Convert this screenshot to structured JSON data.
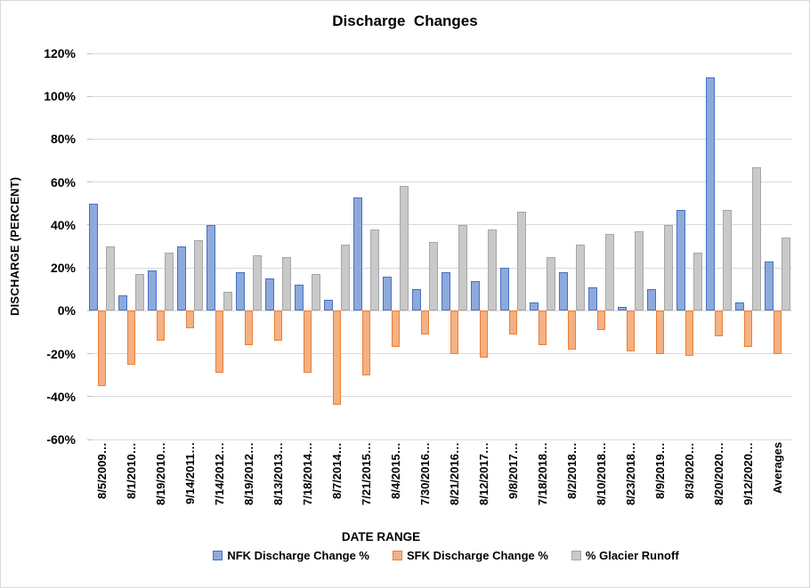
{
  "title": "Discharge  Changes",
  "axes": {
    "y_title": "DISCHARGE (PERCENT)",
    "x_title": "DATE RANGE",
    "y_ticks": [
      "120%",
      "100%",
      "80%",
      "60%",
      "40%",
      "20%",
      "0%",
      "-20%",
      "-40%",
      "-60%"
    ]
  },
  "colors": {
    "gridline": "#D9D9D9",
    "tick": "#BFBFBF",
    "text": "#000000",
    "background": "#FFFFFF"
  },
  "chart_data": {
    "type": "bar",
    "title": "Discharge  Changes",
    "xlabel": "DATE RANGE",
    "ylabel": "DISCHARGE (PERCENT)",
    "ylim": [
      -60,
      120
    ],
    "y_tick_step": 20,
    "grid": true,
    "legend_position": "bottom",
    "categories": [
      "8/5/2009…",
      "8/1/2010…",
      "8/19/2010…",
      "9/14/2011…",
      "7/14/2012…",
      "8/19/2012…",
      "8/13/2013…",
      "7/18/2014…",
      "8/7/2014…",
      "7/21/2015…",
      "8/4/2015…",
      "7/30/2016…",
      "8/21/2016…",
      "8/12/2017…",
      "9/8/2017…",
      "7/18/2018…",
      "8/2/2018…",
      "8/10/2018…",
      "8/23/2018…",
      "8/9/2019…",
      "8/3/2020…",
      "8/20/2020…",
      "9/12/2020…",
      "Averages"
    ],
    "series": [
      {
        "name": "NFK Discharge Change %",
        "slug": "nfk",
        "fill": "#8EA9DB",
        "border": "#4472C4",
        "values": [
          50,
          7,
          19,
          30,
          40,
          18,
          15,
          12,
          5,
          53,
          16,
          10,
          18,
          14,
          20,
          4,
          18,
          11,
          2,
          10,
          47,
          109,
          4,
          23
        ]
      },
      {
        "name": "SFK Discharge Change %",
        "slug": "sfk",
        "fill": "#F4B183",
        "border": "#ED7D31",
        "values": [
          -35,
          -25,
          -14,
          -8,
          -29,
          -16,
          -14,
          -29,
          -44,
          -30,
          -17,
          -11,
          -20,
          -22,
          -11,
          -16,
          -18,
          -9,
          -19,
          -20,
          -21,
          -12,
          -17,
          -20
        ]
      },
      {
        "name": "% Glacier Runoff",
        "slug": "glacier",
        "fill": "#C9C9C9",
        "border": "#A6A6A6",
        "values": [
          30,
          17,
          27,
          33,
          9,
          26,
          25,
          17,
          31,
          38,
          58,
          32,
          40,
          38,
          46,
          25,
          31,
          36,
          37,
          40,
          27,
          47,
          67,
          34
        ]
      }
    ]
  }
}
